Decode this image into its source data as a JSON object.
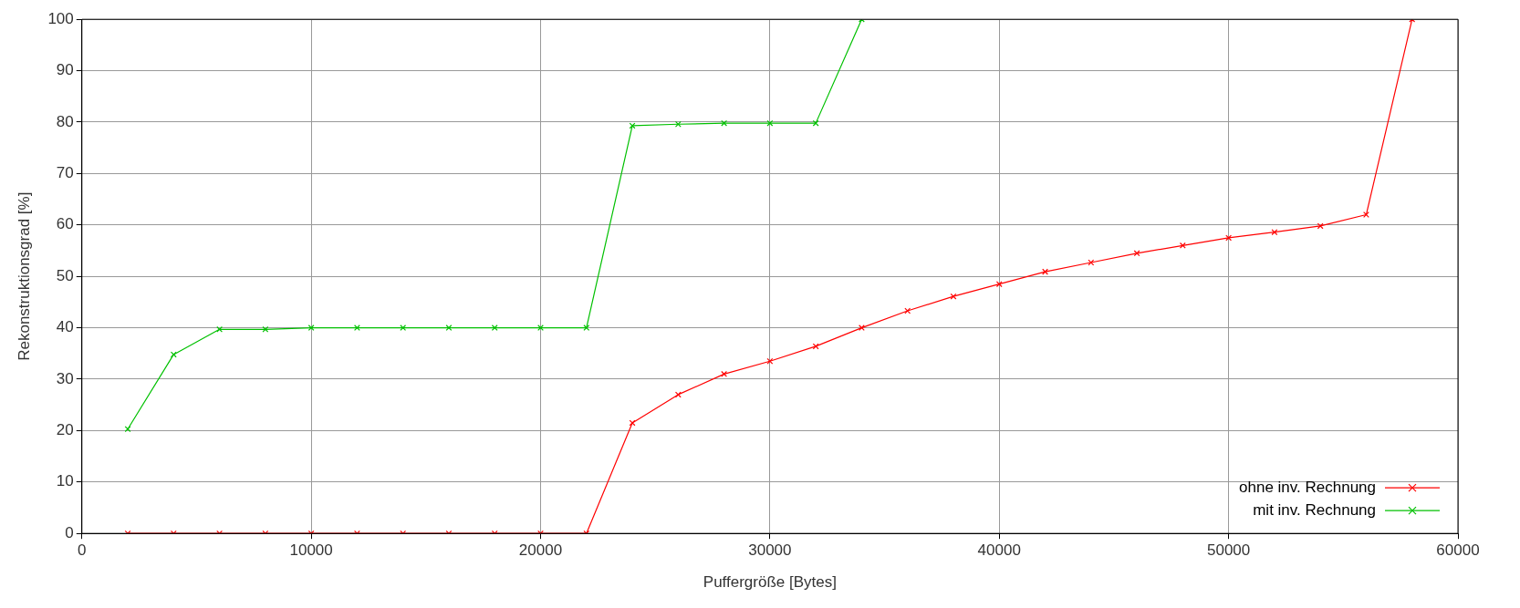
{
  "chart_data": {
    "type": "line",
    "xlabel": "Puffergröße [Bytes]",
    "ylabel": "Rekonstruktionsgrad [%]",
    "xlim": [
      0,
      60000
    ],
    "xticks": [
      0,
      10000,
      20000,
      30000,
      40000,
      50000,
      60000
    ],
    "ylim": [
      0,
      100
    ],
    "yticks": [
      0,
      10,
      20,
      30,
      40,
      50,
      60,
      70,
      80,
      90,
      100
    ],
    "grid": true,
    "legend": "bottom right",
    "marker": "cross",
    "line_style": "solid",
    "series": [
      {
        "name": "ohne inv. Rechnung",
        "color": "#ff0000",
        "x": [
          2000,
          4000,
          6000,
          8000,
          10000,
          12000,
          14000,
          16000,
          18000,
          20000,
          22000,
          24000,
          26000,
          28000,
          30000,
          32000,
          34000,
          36000,
          38000,
          40000,
          42000,
          44000,
          46000,
          48000,
          50000,
          52000,
          54000,
          56000,
          58000
        ],
        "values": [
          0,
          0,
          0,
          0,
          0,
          0,
          0,
          0,
          0,
          0,
          0,
          21.5,
          27,
          31,
          33.5,
          36.4,
          40,
          43.3,
          46.1,
          48.5,
          50.9,
          52.7,
          54.5,
          56,
          57.5,
          58.6,
          59.8,
          62,
          100
        ]
      },
      {
        "name": "mit inv. Rechnung",
        "color": "#00c000",
        "x": [
          2000,
          4000,
          6000,
          8000,
          10000,
          12000,
          14000,
          16000,
          18000,
          20000,
          22000,
          24000,
          26000,
          28000,
          30000,
          32000,
          34000
        ],
        "values": [
          20.3,
          34.8,
          39.7,
          39.7,
          40,
          40,
          40,
          40,
          40,
          40,
          40,
          79.3,
          79.6,
          79.8,
          79.8,
          79.8,
          100
        ]
      }
    ]
  }
}
